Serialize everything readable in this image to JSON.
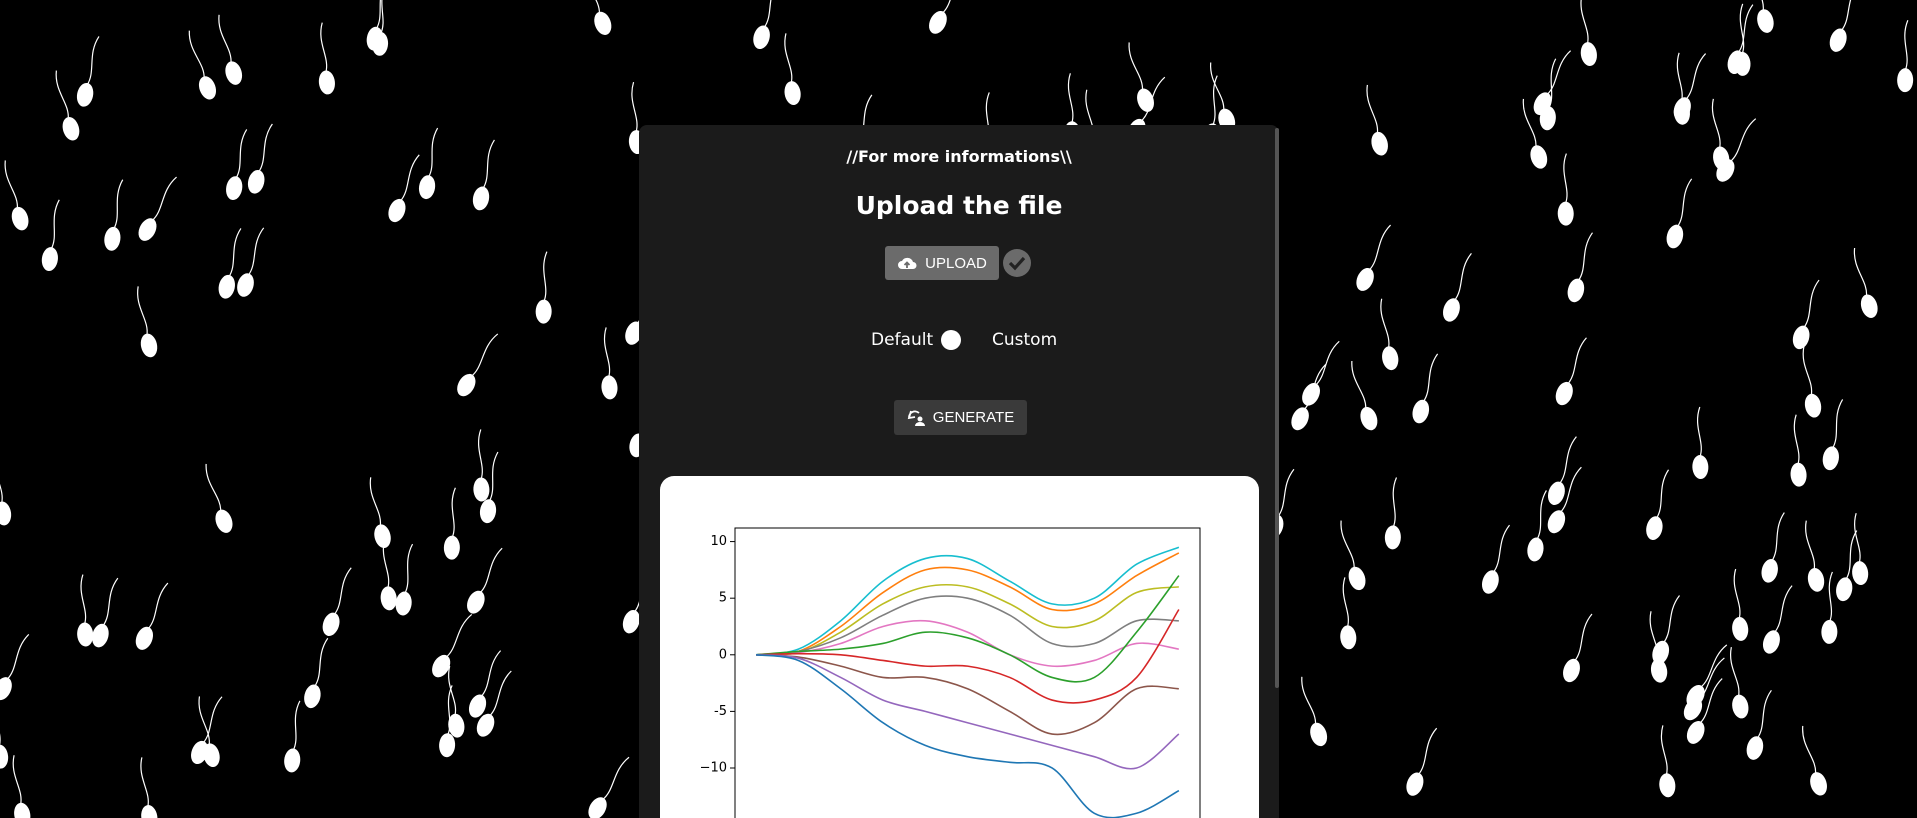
{
  "header": {
    "link": "//For more informations\\\\",
    "title": "Upload the file"
  },
  "buttons": {
    "upload": "UPLOAD",
    "generate": "GENERATE"
  },
  "toggle": {
    "left": "Default",
    "right": "Custom"
  },
  "chart_data": {
    "type": "line",
    "x": [
      0,
      10,
      20,
      30,
      40,
      50,
      60,
      70,
      80,
      90,
      100
    ],
    "xlim": [
      -5,
      105
    ],
    "ylim": [
      -15,
      11.2
    ],
    "yticks": [
      10,
      5,
      0,
      -5,
      {
        "value": -10,
        "label": "−10"
      }
    ],
    "series": [
      {
        "color": "#17becf",
        "values": [
          0,
          0.5,
          3,
          6.5,
          8.5,
          8.5,
          6.5,
          4.5,
          5,
          8,
          9.5
        ]
      },
      {
        "color": "#ff7f0e",
        "values": [
          0,
          0.3,
          2.5,
          5.5,
          7.5,
          7.5,
          6,
          4,
          4.5,
          7,
          9
        ]
      },
      {
        "color": "#bcbd22",
        "values": [
          0,
          0.2,
          2,
          4.5,
          6,
          6,
          4.5,
          2.5,
          3,
          5.5,
          6
        ]
      },
      {
        "color": "#7f7f7f",
        "values": [
          0,
          0.3,
          1.5,
          3.5,
          5,
          5,
          3.5,
          1,
          1,
          3,
          3
        ]
      },
      {
        "color": "#e377c2",
        "values": [
          0,
          0.2,
          1,
          2.5,
          3,
          2,
          0,
          -1,
          -0.5,
          1,
          0.5
        ]
      },
      {
        "color": "#2ca02c",
        "values": [
          0,
          0.3,
          0.5,
          1,
          2,
          1.5,
          0,
          -2,
          -2,
          2,
          7
        ]
      },
      {
        "color": "#d62728",
        "values": [
          0,
          0.1,
          0,
          -0.5,
          -1,
          -1,
          -2,
          -4,
          -4,
          -2,
          4
        ]
      },
      {
        "color": "#8c564b",
        "values": [
          0,
          -0.2,
          -1,
          -2,
          -2,
          -3,
          -5,
          -7,
          -6,
          -3,
          -3
        ]
      },
      {
        "color": "#9467bd",
        "values": [
          0,
          -0.3,
          -2,
          -4,
          -5,
          -6,
          -7,
          -8,
          -9,
          -10,
          -7
        ]
      },
      {
        "color": "#1f77b4",
        "values": [
          0,
          -0.5,
          -3,
          -6,
          -8,
          -9,
          -9.5,
          -10,
          -14,
          -14,
          -12
        ]
      }
    ]
  }
}
